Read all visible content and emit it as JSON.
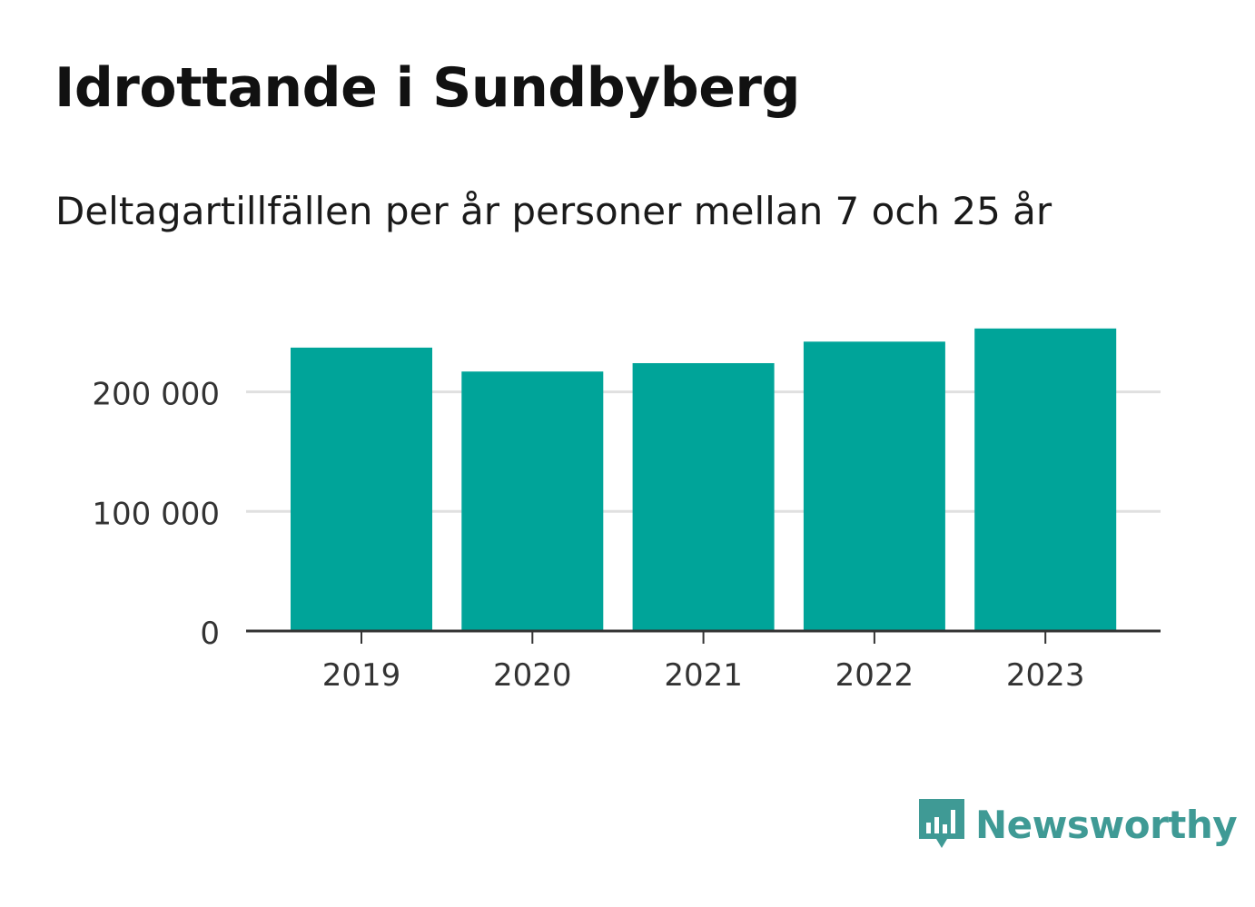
{
  "header": {
    "title": "Idrottande i Sundbyberg",
    "subtitle": "Deltagartillfällen per år personer mellan 7 och 25 år"
  },
  "brand": {
    "name": "Newsworthy",
    "color": "#3f9a95",
    "icon": "bar-chart-speech-bubble-icon"
  },
  "chart_data": {
    "type": "bar",
    "categories": [
      "2019",
      "2020",
      "2021",
      "2022",
      "2023"
    ],
    "values": [
      237000,
      217000,
      224000,
      242000,
      253000
    ],
    "ylim": [
      0,
      265000
    ],
    "yticks": [
      0,
      100000,
      200000
    ],
    "ytick_labels": [
      "0",
      "100 000",
      "200 000"
    ],
    "grid": true,
    "bar_color": "#00a499",
    "grid_color": "#e0e0e0",
    "axis_color": "#333333"
  }
}
